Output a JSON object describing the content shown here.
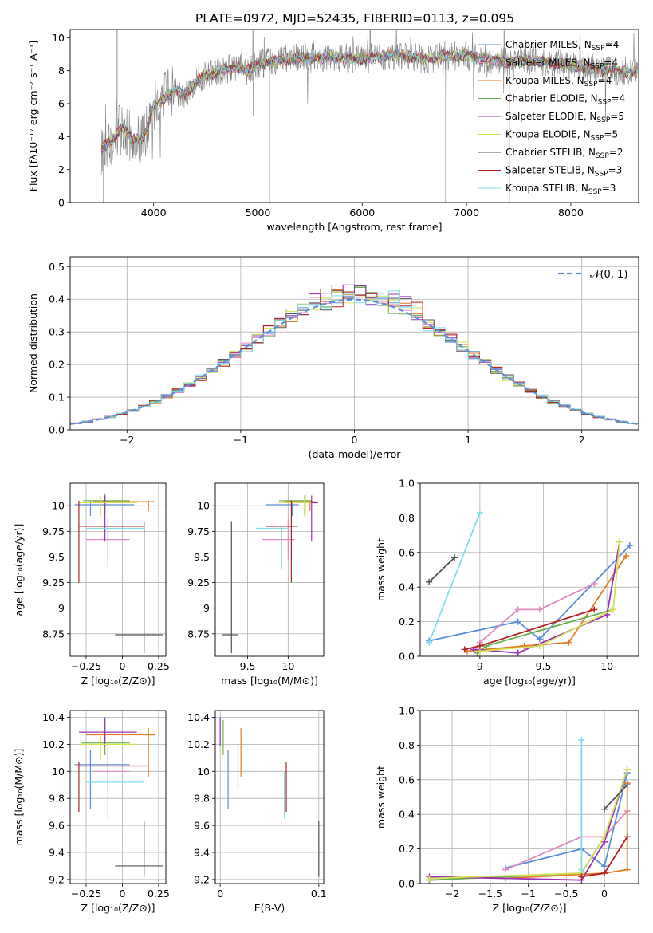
{
  "title": "PLATE=0972, MJD=52435, FIBERID=0113, z=0.095",
  "chart_data": [
    {
      "id": "spectrum",
      "type": "line",
      "title": "PLATE=0972, MJD=52435, FIBERID=0113, z=0.095",
      "xlabel": "wavelength [Angstrom, rest frame]",
      "ylabel": "Flux [fλ10⁻¹⁷ erg cm⁻² s⁻¹ A⁻¹]",
      "xlim": [
        3200,
        8650
      ],
      "ylim": [
        0,
        10.5
      ],
      "xticks": [
        4000,
        5000,
        6000,
        7000,
        8000
      ],
      "yticks": [
        0,
        2,
        4,
        6,
        8,
        10
      ],
      "grid": false,
      "legend_position": "right",
      "continuum_x": [
        3500,
        3600,
        3700,
        3800,
        3900,
        4000,
        4100,
        4200,
        4300,
        4400,
        4500,
        4600,
        4700,
        4800,
        4900,
        5000,
        5200,
        5400,
        5600,
        5800,
        6000,
        6200,
        6400,
        6600,
        6800,
        7000,
        7200,
        7400,
        7600,
        7800,
        8000,
        8200,
        8400,
        8600
      ],
      "continuum_y": [
        3.3,
        3.8,
        4.6,
        3.8,
        3.9,
        5.8,
        6.3,
        6.8,
        6.5,
        7.3,
        7.7,
        7.9,
        8.1,
        8.2,
        8.0,
        8.4,
        8.6,
        8.8,
        8.8,
        8.8,
        8.7,
        8.9,
        8.9,
        8.7,
        8.9,
        8.9,
        8.7,
        8.5,
        8.6,
        8.5,
        8.3,
        8.1,
        8.0,
        7.9
      ],
      "series": [
        {
          "name": "Chabrier MILES, N$_{SSP}$=4",
          "color": "#5b8fd9"
        },
        {
          "name": "Salpeter MILES, N$_{SSP}$=4",
          "color": "#e08bc2"
        },
        {
          "name": "Kroupa MILES, N$_{SSP}$=4",
          "color": "#e57b25"
        },
        {
          "name": "Chabrier ELODIE, N$_{SSP}$=4",
          "color": "#6ab04c"
        },
        {
          "name": "Salpeter ELODIE, N$_{SSP}$=5",
          "color": "#9b30b8"
        },
        {
          "name": "Kroupa ELODIE, N$_{SSP}$=5",
          "color": "#d4e157"
        },
        {
          "name": "Chabrier STELIB, N$_{SSP}$=2",
          "color": "#555555"
        },
        {
          "name": "Salpeter STELIB, N$_{SSP}$=3",
          "color": "#b22222"
        },
        {
          "name": "Kroupa STELIB, N$_{SSP}$=3",
          "color": "#80deea"
        }
      ]
    },
    {
      "id": "residuals",
      "type": "line",
      "xlabel": "(data-model)/error",
      "ylabel": "Normed distribution",
      "xlim": [
        -2.5,
        2.5
      ],
      "ylim": [
        0,
        0.53
      ],
      "xticks": [
        -2,
        -1,
        0,
        1,
        2
      ],
      "yticks": [
        0.0,
        0.1,
        0.2,
        0.3,
        0.4,
        0.5
      ],
      "grid": true,
      "legend": "𝒩(0, 1)",
      "legend_position": "top-right",
      "bin_width": 0.1
    },
    {
      "id": "age-vs-Z",
      "type": "scatter",
      "xlabel": "Z [log₁₀(Z/Z⊙)]",
      "ylabel": "age  [log₁₀(age/yr)]",
      "xlim": [
        -0.36,
        0.3
      ],
      "ylim": [
        8.53,
        10.22
      ],
      "xticks": [
        -0.25,
        0.0,
        0.25
      ],
      "yticks": [
        8.75,
        9.0,
        9.25,
        9.5,
        9.75,
        10.0
      ],
      "grid": true
    },
    {
      "id": "age-vs-mass",
      "type": "scatter",
      "xlabel": "mass [log₁₀(M/M⊙)]",
      "xlim": [
        9.1,
        10.44
      ],
      "ylim": [
        8.53,
        10.22
      ],
      "xticks": [
        9.5,
        10.0
      ],
      "yticks": [
        8.75,
        9.0,
        9.25,
        9.5,
        9.75,
        10.0
      ],
      "grid": true
    },
    {
      "id": "weight-vs-age",
      "type": "line",
      "xlabel": "age  [log₁₀(age/yr)]",
      "ylabel": "mass weight",
      "xlim": [
        8.53,
        10.25
      ],
      "ylim": [
        0,
        1.0
      ],
      "xticks": [
        9.0,
        9.5,
        10.0
      ],
      "yticks": [
        0.0,
        0.2,
        0.4,
        0.6,
        0.8,
        1.0
      ],
      "grid": true
    },
    {
      "id": "mass-vs-Z",
      "type": "scatter",
      "xlabel": "Z [log₁₀(Z/Z⊙)]",
      "ylabel": "mass [log₁₀(M/M⊙)]",
      "xlim": [
        -0.36,
        0.3
      ],
      "ylim": [
        9.17,
        10.45
      ],
      "xticks": [
        -0.25,
        0.0,
        0.25
      ],
      "yticks": [
        9.2,
        9.4,
        9.6,
        9.8,
        10.0,
        10.2,
        10.4
      ],
      "grid": true
    },
    {
      "id": "mass-vs-ebv",
      "type": "scatter",
      "xlabel": "E(B-V)",
      "xlim": [
        -0.005,
        0.105
      ],
      "ylim": [
        9.17,
        10.45
      ],
      "xticks": [
        0.0,
        0.1
      ],
      "yticks": [
        9.2,
        9.4,
        9.6,
        9.8,
        10.0,
        10.2,
        10.4
      ],
      "grid": true
    },
    {
      "id": "weight-vs-Z",
      "type": "line",
      "xlabel": "Z [log₁₀(Z/Z⊙)]",
      "ylabel": "mass weight",
      "xlim": [
        -2.42,
        0.45
      ],
      "ylim": [
        0,
        1.0
      ],
      "xticks": [
        -2.0,
        -1.5,
        -1.0,
        -0.5,
        0.0
      ],
      "yticks": [
        0.0,
        0.2,
        0.4,
        0.6,
        0.8,
        1.0
      ],
      "grid": true
    }
  ],
  "models": [
    {
      "name": "Chabrier MILES",
      "color": "#5b8fd9",
      "age": 10.01,
      "age_err": [
        9.9,
        10.05
      ],
      "Z": -0.22,
      "Z_err": [
        -0.33,
        0.08
      ],
      "mass": 10.05,
      "mass_err": [
        9.72,
        10.16
      ],
      "mass_errZ": [
        -0.33,
        0.05
      ],
      "ebv": 0.008,
      "ssp_age": [
        8.6,
        9.3,
        9.47,
        10.18
      ],
      "ssp_Z": [
        -1.3,
        -0.3,
        0.0,
        0.3
      ],
      "ssp_w": [
        0.09,
        0.2,
        0.1,
        0.64
      ]
    },
    {
      "name": "Salpeter MILES",
      "color": "#e08bc2",
      "age": 9.67,
      "age_err": [
        9.48,
        9.87
      ],
      "Z": -0.1,
      "Z_err": [
        -0.25,
        0.05
      ],
      "mass": 10.0,
      "mass_err": [
        9.87,
        10.2
      ],
      "mass_errZ": [
        -0.2,
        0.05
      ],
      "ebv": 0.018,
      "ssp_age": [
        9.0,
        9.3,
        9.47,
        9.9
      ],
      "ssp_Z": [
        -1.3,
        -0.3,
        0.0,
        0.3
      ],
      "ssp_w": [
        0.08,
        0.27,
        0.27,
        0.42
      ]
    },
    {
      "name": "Kroupa MILES",
      "color": "#e57b25",
      "age": 10.04,
      "age_err": [
        9.95,
        10.05
      ],
      "Z": 0.18,
      "Z_err": [
        -0.2,
        0.22
      ],
      "mass": 10.27,
      "mass_err": [
        9.96,
        10.32
      ],
      "mass_errZ": [
        -0.25,
        0.23
      ],
      "ebv": 0.021,
      "ssp_age": [
        8.9,
        9.35,
        9.7,
        10.15
      ],
      "ssp_Z": [
        -1.3,
        0.0,
        0.3,
        0.3
      ],
      "ssp_w": [
        0.03,
        0.06,
        0.08,
        0.58
      ]
    },
    {
      "name": "Chabrier ELODIE",
      "color": "#6ab04c",
      "age": 10.05,
      "age_err": [
        9.93,
        10.12
      ],
      "Z": -0.12,
      "Z_err": [
        -0.27,
        0.05
      ],
      "mass": 10.21,
      "mass_err": [
        10.12,
        10.38
      ],
      "mass_errZ": [
        -0.28,
        0.05
      ],
      "ebv": 0.003,
      "ssp_age": [
        8.98,
        9.05,
        10.05
      ],
      "ssp_Z": [
        -2.3,
        -0.3,
        0.0
      ],
      "ssp_w": [
        0.02,
        0.06,
        0.27
      ]
    },
    {
      "name": "Salpeter ELODIE",
      "color": "#9b30b8",
      "age": 10.03,
      "age_err": [
        9.65,
        10.1
      ],
      "Z": -0.12,
      "Z_err": [
        -0.3,
        0.1
      ],
      "mass": 10.29,
      "mass_err": [
        10.19,
        10.4
      ],
      "mass_errZ": [
        -0.3,
        0.1
      ],
      "ebv": 0.0,
      "ssp_age": [
        8.95,
        9.3,
        10.0,
        10.1
      ],
      "ssp_Z": [
        -2.3,
        -0.3,
        0.0,
        0.3
      ],
      "ssp_w": [
        0.04,
        0.02,
        0.24,
        0.66
      ]
    },
    {
      "name": "Kroupa ELODIE",
      "color": "#d4e157",
      "age": 10.03,
      "age_err": [
        9.9,
        10.1
      ],
      "Z": -0.15,
      "Z_err": [
        -0.3,
        0.1
      ],
      "mass": 10.2,
      "mass_err": [
        10.08,
        10.3
      ],
      "mass_errZ": [
        -0.3,
        0.1
      ],
      "ebv": 0.002,
      "ssp_age": [
        9.0,
        9.47,
        10.05,
        10.1
      ],
      "ssp_Z": [
        -2.3,
        -0.3,
        0.0,
        0.3
      ],
      "ssp_w": [
        0.03,
        0.06,
        0.27,
        0.66
      ]
    },
    {
      "name": "Chabrier STELIB",
      "color": "#555555",
      "age": 8.74,
      "age_err": [
        8.56,
        9.85
      ],
      "Z": 0.15,
      "Z_err": [
        -0.05,
        0.28
      ],
      "mass": 9.3,
      "mass_err": [
        9.22,
        9.63
      ],
      "mass_errZ": [
        -0.05,
        0.28
      ],
      "ebv": 0.1,
      "ssp_age": [
        8.6,
        8.8
      ],
      "ssp_Z": [
        0.0,
        0.3
      ],
      "ssp_w": [
        0.43,
        0.57
      ]
    },
    {
      "name": "Salpeter STELIB",
      "color": "#b22222",
      "age": 9.8,
      "age_err": [
        9.25,
        10.05
      ],
      "Z": -0.3,
      "Z_err": [
        -0.3,
        0.15
      ],
      "mass": 10.04,
      "mass_err": [
        9.7,
        10.07
      ],
      "mass_errZ": [
        -0.3,
        0.17
      ],
      "ebv": 0.067,
      "ssp_age": [
        8.88,
        9.0,
        9.9
      ],
      "ssp_Z": [
        -0.3,
        0.0,
        0.3
      ],
      "ssp_w": [
        0.04,
        0.06,
        0.27
      ]
    },
    {
      "name": "Kroupa STELIB",
      "color": "#80deea",
      "age": 9.78,
      "age_err": [
        9.38,
        9.8
      ],
      "Z": -0.1,
      "Z_err": [
        -0.25,
        0.15
      ],
      "mass": 9.92,
      "mass_err": [
        9.65,
        10.0
      ],
      "mass_errZ": [
        -0.25,
        0.15
      ],
      "ebv": 0.065,
      "ssp_age": [
        8.6,
        9.0,
        9.85
      ],
      "ssp_Z": [
        -0.3,
        -0.3
      ],
      "ssp_w": [
        0.08,
        0.83
      ]
    }
  ]
}
